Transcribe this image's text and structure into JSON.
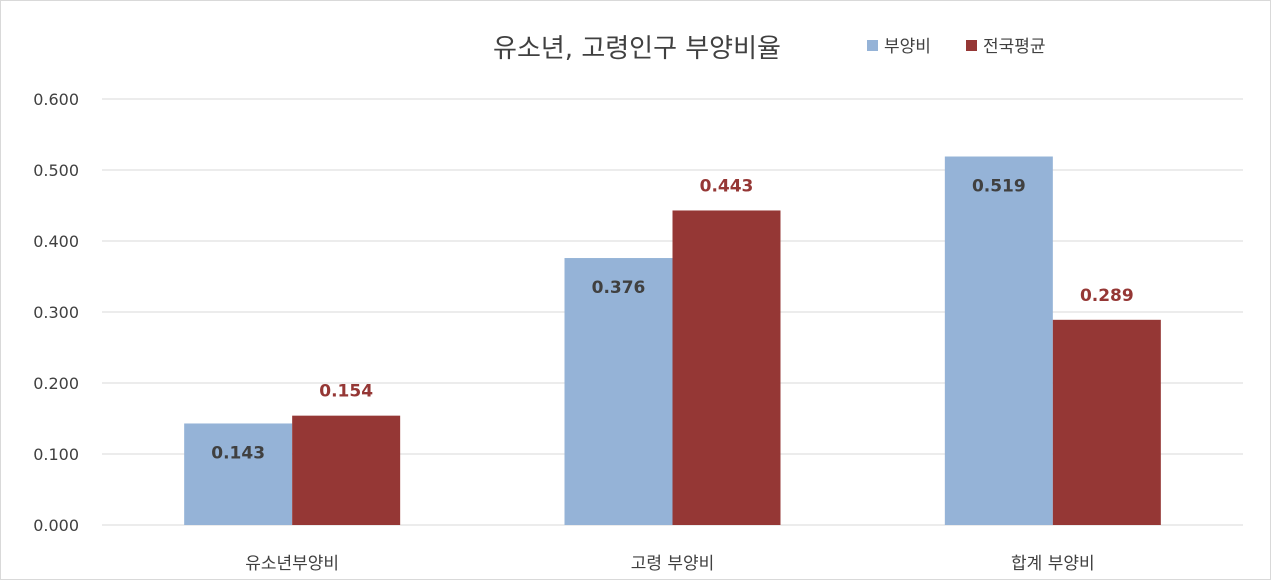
{
  "chart_data": {
    "type": "bar",
    "title": "유소년, 고령인구 부양비율",
    "categories": [
      "유소년부양비",
      "고령 부양비",
      "합계 부양비"
    ],
    "series": [
      {
        "name": "부양비",
        "values": [
          0.143,
          0.376,
          0.519
        ],
        "color": "#95B3D7",
        "label_color": "#404040"
      },
      {
        "name": "전국평균",
        "values": [
          0.154,
          0.443,
          0.289
        ],
        "color": "#953735",
        "label_color": "#953735"
      }
    ],
    "value_labels": [
      [
        "0.143",
        "0.376",
        "0.519"
      ],
      [
        "0.154",
        "0.443",
        "0.289"
      ]
    ],
    "y_ticks": [
      "0.000",
      "0.100",
      "0.200",
      "0.300",
      "0.400",
      "0.500",
      "0.600"
    ],
    "ylim": [
      0,
      0.6
    ],
    "grid": true,
    "legend_position": "top-right",
    "xlabel": "",
    "ylabel": ""
  }
}
